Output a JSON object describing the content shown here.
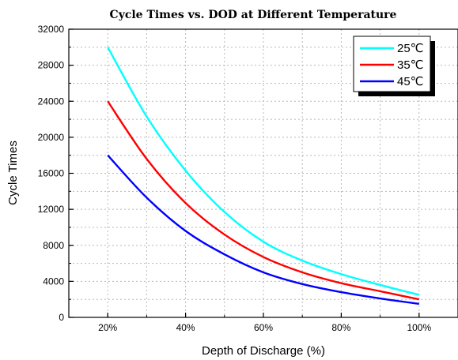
{
  "chart_data": {
    "type": "line",
    "title": "Cycle Times vs. DOD at Different Temperature",
    "xlabel": "Depth of Discharge (%)",
    "ylabel": "Cycle Times",
    "xlim": [
      10,
      110
    ],
    "ylim": [
      0,
      32000
    ],
    "x_ticks": [
      20,
      40,
      60,
      80,
      100
    ],
    "x_tick_labels": [
      "20%",
      "40%",
      "60%",
      "80%",
      "100%"
    ],
    "y_ticks": [
      0,
      4000,
      8000,
      12000,
      16000,
      20000,
      24000,
      28000,
      32000
    ],
    "y_tick_labels": [
      "0",
      "4000",
      "8000",
      "12000",
      "16000",
      "20000",
      "24000",
      "28000",
      "32000"
    ],
    "grid": true,
    "legend_position": "top-right",
    "x": [
      20,
      30,
      40,
      50,
      60,
      70,
      80,
      90,
      100
    ],
    "series": [
      {
        "name": "25℃",
        "color": "#00ffff",
        "values": [
          30000,
          22300,
          16300,
          11700,
          8400,
          6300,
          4800,
          3600,
          2500
        ]
      },
      {
        "name": "35℃",
        "color": "#ff0000",
        "values": [
          24000,
          17600,
          12700,
          9200,
          6700,
          5000,
          3800,
          2900,
          2000
        ]
      },
      {
        "name": "45℃",
        "color": "#0000ff",
        "values": [
          18000,
          13300,
          9600,
          7000,
          5000,
          3700,
          2800,
          2100,
          1500
        ]
      }
    ]
  }
}
